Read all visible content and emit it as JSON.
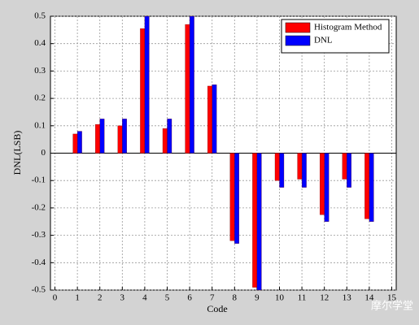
{
  "chart_data": {
    "type": "bar",
    "xlabel": "Code",
    "ylabel": "DNL(LSB)",
    "x": [
      1,
      2,
      3,
      4,
      5,
      6,
      7,
      8,
      9,
      10,
      11,
      12,
      13,
      14
    ],
    "series": [
      {
        "name": "Histogram Method",
        "color": "#ff0000",
        "values": [
          0.07,
          0.105,
          0.1,
          0.455,
          0.09,
          0.47,
          0.245,
          -0.32,
          -0.49,
          -0.1,
          -0.095,
          -0.225,
          -0.095,
          -0.24
        ]
      },
      {
        "name": "DNL",
        "color": "#0000ff",
        "values": [
          0.08,
          0.125,
          0.125,
          0.5,
          0.125,
          0.5,
          0.25,
          -0.33,
          -0.5,
          -0.125,
          -0.125,
          -0.25,
          -0.125,
          -0.25
        ]
      }
    ],
    "xlim": [
      -0.2,
      15.2
    ],
    "xticks": [
      0,
      1,
      2,
      3,
      4,
      5,
      6,
      7,
      8,
      9,
      10,
      11,
      12,
      13,
      14,
      15
    ],
    "ylim": [
      -0.5,
      0.5
    ],
    "yticks": [
      -0.5,
      -0.4,
      -0.3,
      -0.2,
      -0.1,
      0,
      0.1,
      0.2,
      0.3,
      0.4,
      0.5
    ],
    "grid": true,
    "legend": "upper right",
    "watermark": "摩尔学堂"
  }
}
